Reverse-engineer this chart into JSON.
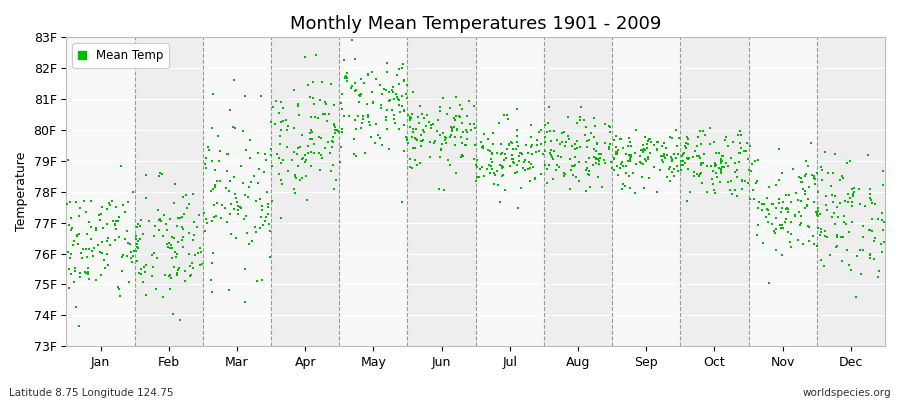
{
  "title": "Monthly Mean Temperatures 1901 - 2009",
  "ylabel": "Temperature",
  "xlabel": "",
  "footnote_left": "Latitude 8.75 Longitude 124.75",
  "footnote_right": "worldspecies.org",
  "y_min": 73,
  "y_max": 83,
  "y_ticks": [
    73,
    74,
    75,
    76,
    77,
    78,
    79,
    80,
    81,
    82,
    83
  ],
  "y_tick_labels": [
    "73F",
    "74F",
    "75F",
    "76F",
    "77F",
    "78F",
    "79F",
    "80F",
    "81F",
    "82F",
    "83F"
  ],
  "months": [
    "Jan",
    "Feb",
    "Mar",
    "Apr",
    "May",
    "Jun",
    "Jul",
    "Aug",
    "Sep",
    "Oct",
    "Nov",
    "Dec"
  ],
  "marker_color": "#00bb00",
  "marker": "s",
  "marker_size": 3,
  "bg_color": "#eeeeee",
  "alt_band_color": "#f8f8f8",
  "legend_label": "Mean Temp",
  "title_fontsize": 13,
  "axis_fontsize": 9,
  "tick_fontsize": 9,
  "n_years": 109,
  "seed": 42,
  "monthly_means": [
    76.3,
    76.2,
    78.0,
    79.8,
    80.8,
    79.8,
    79.2,
    79.2,
    79.1,
    79.0,
    77.6,
    77.2
  ],
  "monthly_stds": [
    1.0,
    1.1,
    1.3,
    1.0,
    0.9,
    0.6,
    0.6,
    0.6,
    0.5,
    0.6,
    0.9,
    1.0
  ]
}
